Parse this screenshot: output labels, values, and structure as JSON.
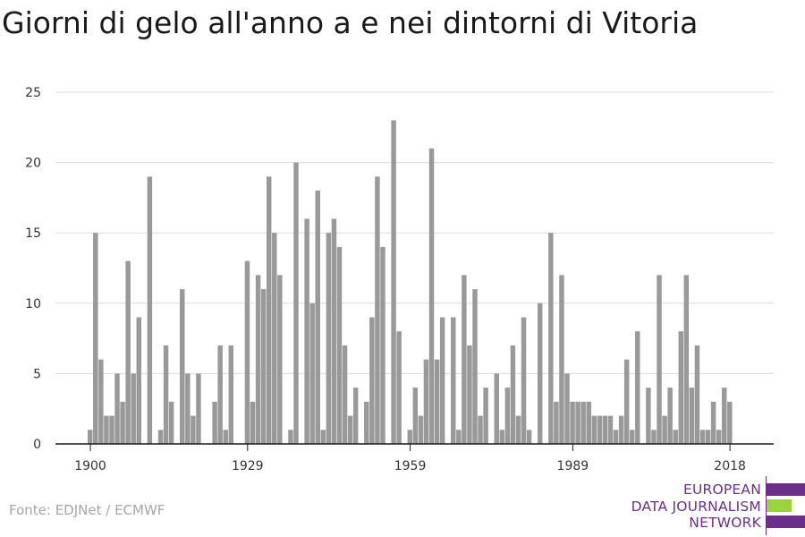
{
  "title": "Giorni di gelo all'anno a e nei dintorni di Vitoria",
  "source": "Fonte: EDJNet / ECMWF",
  "logo": {
    "lines": [
      "EUROPEAN",
      "DATA JOURNALISM",
      "NETWORK"
    ],
    "colors": {
      "purple": "#6b2f8a",
      "green": "#9bd43a"
    }
  },
  "chart_data": {
    "type": "bar",
    "x_start": 1900,
    "x_end": 2018,
    "x_ticks": [
      1900,
      1929,
      1959,
      1989,
      2018
    ],
    "y_ticks": [
      0,
      5,
      10,
      15,
      20,
      25
    ],
    "ylim": [
      0,
      25
    ],
    "grid": true,
    "bar_color": "#999999",
    "values": [
      1,
      15,
      6,
      2,
      2,
      5,
      3,
      13,
      5,
      9,
      0,
      19,
      0,
      1,
      7,
      3,
      0,
      11,
      5,
      2,
      5,
      0,
      0,
      3,
      7,
      1,
      7,
      0,
      0,
      13,
      3,
      12,
      11,
      19,
      15,
      12,
      0,
      1,
      20,
      0,
      16,
      10,
      18,
      1,
      15,
      16,
      14,
      7,
      2,
      4,
      0,
      3,
      9,
      19,
      14,
      0,
      23,
      8,
      0,
      1,
      4,
      2,
      6,
      21,
      6,
      9,
      0,
      9,
      1,
      12,
      7,
      11,
      2,
      4,
      0,
      5,
      1,
      4,
      7,
      2,
      9,
      1,
      0,
      10,
      0,
      15,
      3,
      12,
      5,
      3,
      3,
      3,
      3,
      2,
      2,
      2,
      2,
      1,
      2,
      6,
      1,
      8,
      0,
      4,
      1,
      12,
      2,
      4,
      1,
      8,
      12,
      4,
      7,
      1,
      1,
      3,
      1,
      4,
      3
    ]
  }
}
